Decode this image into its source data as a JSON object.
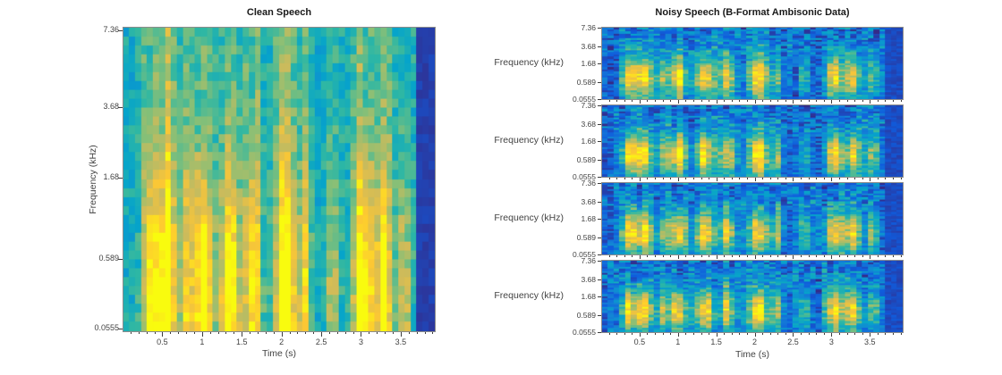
{
  "figure": {
    "background": "#ffffff",
    "colormap": "parula",
    "colormap_hex": [
      "#352a87",
      "#0f5cdd",
      "#1481d6",
      "#06a4ca",
      "#2eb7a4",
      "#87bf77",
      "#d1bb59",
      "#fec832",
      "#f9fb0e"
    ],
    "text_color": "#424242"
  },
  "left_plot": {
    "title": "Clean Speech",
    "xlabel": "Time (s)",
    "ylabel": "Frequency (kHz)",
    "yticks": [
      "7.36",
      "3.68",
      "1.68",
      "0.589",
      "0.0555"
    ],
    "xticks": [
      "0.5",
      "1",
      "1.5",
      "2",
      "2.5",
      "3",
      "3.5"
    ]
  },
  "right_plot": {
    "title": "Noisy Speech (B-Format Ambisonic Data)",
    "xlabel": "Time (s)",
    "ylabel": "Frequency (kHz)",
    "channel_count": 4,
    "yticks": [
      "7.36",
      "3.68",
      "1.68",
      "0.589",
      "0.0555"
    ],
    "xticks": [
      "0.5",
      "1",
      "1.5",
      "2",
      "2.5",
      "3",
      "3.5"
    ]
  },
  "chart_data": [
    {
      "type": "heatmap",
      "id": "clean-speech-spectrogram",
      "title": "Clean Speech",
      "xlabel": "Time (s)",
      "ylabel": "Frequency (kHz)",
      "x_range_s": [
        0,
        3.94
      ],
      "x_ticks": [
        0.5,
        1,
        1.5,
        2,
        2.5,
        3,
        3.5
      ],
      "y_ticks_khz": [
        0.0555,
        0.589,
        1.68,
        3.68,
        7.36
      ],
      "y_scale": "auditory-log",
      "colormap": "parula",
      "speech_bursts_s": [
        [
          0.35,
          0.1,
          0.9
        ],
        [
          0.55,
          0.12,
          1.0
        ],
        [
          0.8,
          0.08,
          0.6
        ],
        [
          1.0,
          0.12,
          1.0
        ],
        [
          1.35,
          0.14,
          0.95
        ],
        [
          1.65,
          0.1,
          0.85
        ],
        [
          2.05,
          0.14,
          1.0
        ],
        [
          2.3,
          0.08,
          0.6
        ],
        [
          2.65,
          0.08,
          0.5
        ],
        [
          3.05,
          0.13,
          1.0
        ],
        [
          3.3,
          0.1,
          0.9
        ],
        [
          3.55,
          0.09,
          0.6
        ]
      ],
      "content": "Speech energy (yellow) concentrated below ~1.7 kHz in voiced bursts over a teal background; dark-blue silence band after ~3.7 s"
    },
    {
      "type": "heatmap",
      "id": "noisy-speech-spectrograms",
      "title": "Noisy Speech (B-Format Ambisonic Data)",
      "channels": 4,
      "xlabel": "Time (s)",
      "ylabel": "Frequency (kHz)",
      "x_range_s": [
        0,
        3.94
      ],
      "x_ticks": [
        0.5,
        1,
        1.5,
        2,
        2.5,
        3,
        3.5
      ],
      "y_ticks_khz": [
        0.0555,
        0.589,
        1.68,
        3.68,
        7.36
      ],
      "y_scale": "auditory-log",
      "colormap": "parula",
      "content": "Four stacked channel spectrograms showing the same speech bursts embedded in blue broadband noise; yellow patches mainly between ~0.2 and ~2 kHz, dark-blue region after ~3.7 s"
    }
  ]
}
